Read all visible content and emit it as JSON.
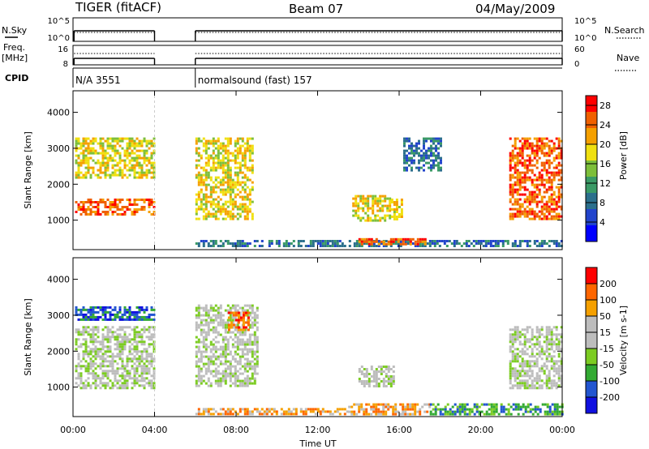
{
  "header": {
    "site": "TIGER (fitACF)",
    "beam": "Beam 07",
    "date": "04/May/2009"
  },
  "strips": {
    "nsky_label": "N.Sky",
    "nsearch_label": "N.Search",
    "freq_label": "Freq.",
    "freq_unit": "[MHz]",
    "nave_label": "Nave",
    "cpid_label": "CPID",
    "nsky_ticks": [
      "10^5",
      "10^0"
    ],
    "nsearch_ticks": [
      "10^5",
      "10^0"
    ],
    "freq_ticks": [
      "16",
      "8"
    ],
    "nave_ticks": [
      "60",
      "0"
    ],
    "cpid_segments": [
      {
        "label": "N/A 3551",
        "start_h": 0.0,
        "end_h": 4.0
      },
      {
        "label": "normalsound (fast) 157",
        "start_h": 6.0,
        "end_h": 24.0
      }
    ]
  },
  "colors": {
    "power_scale": [
      "#0000ff",
      "#2244cc",
      "#2b6f8c",
      "#3a9a66",
      "#7dbf3a",
      "#f0e010",
      "#f5a000",
      "#f06000",
      "#ff0000"
    ],
    "velocity_scale": [
      "#1010e0",
      "#2255d0",
      "#33aa33",
      "#7ccc22",
      "#bdbdbd",
      "#bdbdbd",
      "#f5a000",
      "#ff6600",
      "#ff0000"
    ]
  },
  "chart_data": [
    {
      "type": "heatmap",
      "panel": "power",
      "xlabel": "Time UT",
      "ylabel": "Slant Range [km]",
      "x_ticks": [
        "00:00",
        "04:00",
        "08:00",
        "12:00",
        "16:00",
        "20:00",
        "00:00"
      ],
      "x_range_hours": [
        0,
        24
      ],
      "ylim": [
        180,
        4600
      ],
      "y_ticks": [
        1000,
        2000,
        3000,
        4000
      ],
      "colorbar": {
        "label": "Power [dB]",
        "ticks": [
          4,
          8,
          12,
          16,
          20,
          24,
          28
        ],
        "range": [
          0,
          30
        ]
      },
      "data_gap_hours": [
        4.0,
        6.0
      ],
      "echo_regions": [
        {
          "t": [
            0.1,
            4.0
          ],
          "r": [
            1150,
            1600
          ],
          "value": 27
        },
        {
          "t": [
            0.1,
            4.0
          ],
          "r": [
            2150,
            3300
          ],
          "value": 18
        },
        {
          "t": [
            6.0,
            8.8
          ],
          "r": [
            1000,
            3300
          ],
          "value": 20
        },
        {
          "t": [
            6.0,
            24.0
          ],
          "r": [
            250,
            450
          ],
          "value": 8
        },
        {
          "t": [
            13.7,
            15.6
          ],
          "r": [
            1000,
            1700
          ],
          "value": 20
        },
        {
          "t": [
            15.6,
            16.1
          ],
          "r": [
            1000,
            1600
          ],
          "value": 18
        },
        {
          "t": [
            14.0,
            17.3
          ],
          "r": [
            300,
            500
          ],
          "value": 28
        },
        {
          "t": [
            16.2,
            18.0
          ],
          "r": [
            2400,
            3300
          ],
          "value": 8
        },
        {
          "t": [
            21.4,
            24.0
          ],
          "r": [
            1000,
            3300
          ],
          "value": 26
        }
      ]
    },
    {
      "type": "heatmap",
      "panel": "velocity",
      "xlabel": "Time UT",
      "ylabel": "Slant Range [km]",
      "x_ticks": [
        "00:00",
        "04:00",
        "08:00",
        "12:00",
        "16:00",
        "20:00",
        "00:00"
      ],
      "x_range_hours": [
        0,
        24
      ],
      "ylim": [
        180,
        4600
      ],
      "y_ticks": [
        1000,
        2000,
        3000,
        4000
      ],
      "colorbar": {
        "label": "Velocity [m s-1]",
        "ticks": [
          200,
          100,
          50,
          15,
          -15,
          -50,
          -100,
          -200
        ]
      },
      "data_gap_hours": [
        4.0,
        6.0
      ],
      "echo_regions": [
        {
          "t": [
            0.1,
            4.0
          ],
          "r": [
            2900,
            3250
          ],
          "value": -180
        },
        {
          "t": [
            0.1,
            4.0
          ],
          "r": [
            1000,
            2700
          ],
          "value": 0
        },
        {
          "t": [
            6.0,
            9.0
          ],
          "r": [
            1000,
            3300
          ],
          "value": 0
        },
        {
          "t": [
            7.6,
            8.6
          ],
          "r": [
            2600,
            3100
          ],
          "value": 150
        },
        {
          "t": [
            6.0,
            13.5
          ],
          "r": [
            220,
            420
          ],
          "value": 60
        },
        {
          "t": [
            13.5,
            17.5
          ],
          "r": [
            250,
            550
          ],
          "value": 50
        },
        {
          "t": [
            14.0,
            15.7
          ],
          "r": [
            1000,
            1600
          ],
          "value": 0
        },
        {
          "t": [
            17.5,
            24.0
          ],
          "r": [
            220,
            550
          ],
          "value": -60
        },
        {
          "t": [
            21.4,
            24.0
          ],
          "r": [
            1000,
            2700
          ],
          "value": 0
        }
      ]
    }
  ]
}
